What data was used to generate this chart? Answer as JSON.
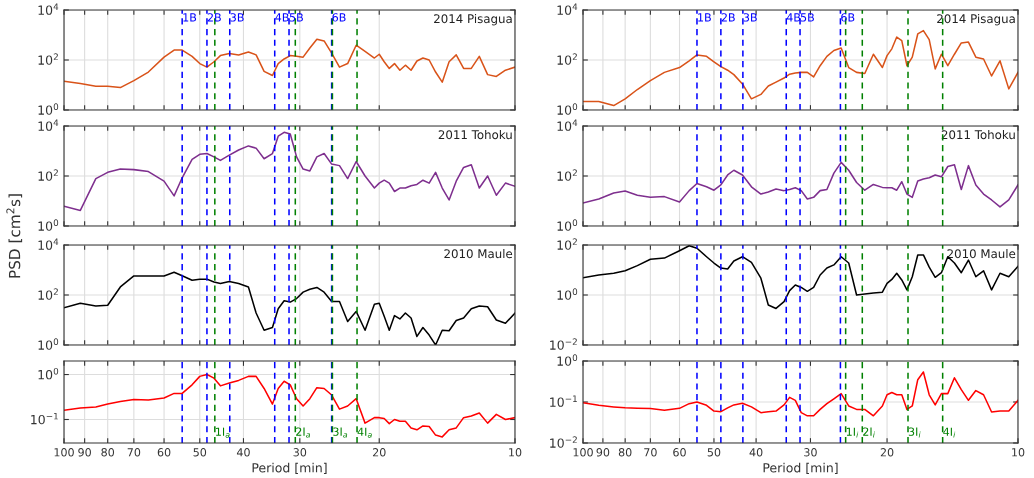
{
  "chart_data": [
    {
      "type": "line",
      "title": "2014 Pisagua",
      "x": [
        100,
        92,
        85,
        80,
        75,
        70,
        65,
        60,
        57,
        54.7,
        52,
        50,
        48.2,
        46.5,
        45,
        43,
        41,
        39,
        37.5,
        36,
        34.5,
        33.5,
        32.5,
        31.5,
        30.5,
        29.5,
        28.5,
        27.5,
        26.5,
        25.5,
        24.5,
        23.5,
        22.5,
        21.5,
        20.5,
        20,
        19.5,
        19,
        18.5,
        18,
        17.5,
        17,
        16.5,
        16,
        15.5,
        15,
        14.5,
        14,
        13.5,
        13,
        12.5,
        12,
        11.5,
        11,
        10.5,
        10
      ],
      "series": [
        {
          "color": "#d95319",
          "values": [
            14,
            11.5,
            8.9,
            8.9,
            7.9,
            15,
            33,
            130,
            250,
            250,
            140,
            72,
            52,
            85,
            150,
            180,
            160,
            210,
            160,
            35,
            24,
            72,
            110,
            150,
            140,
            130,
            300,
            680,
            580,
            190,
            52,
            72,
            390,
            220,
            120,
            170,
            85,
            46,
            72,
            39,
            62,
            39,
            91,
            120,
            100,
            33,
            13,
            85,
            160,
            46,
            46,
            140,
            26,
            22,
            39,
            52
          ]
        }
      ],
      "xlim": [
        100,
        10
      ],
      "xticks": [
        100,
        90,
        80,
        70,
        60,
        50,
        40,
        30,
        20,
        10
      ],
      "ylim": [
        1,
        10000
      ],
      "yticks": [
        {
          "value": 1,
          "label": "10$^{0}$"
        },
        {
          "value": 100,
          "label": "10$^{2}$"
        },
        {
          "value": 10000,
          "label": "10$^{4}$"
        }
      ],
      "log": "xy",
      "grid": true,
      "tick_labels": "y",
      "ref_lines": [
        {
          "axis": "x",
          "value": 54.7,
          "label": "1B",
          "color": "#0000ff",
          "line_style": "dashed"
        },
        {
          "axis": "x",
          "value": 48.2,
          "label": "2B",
          "color": "#0000ff",
          "line_style": "dashed"
        },
        {
          "axis": "x",
          "value": 42.9,
          "label": "3B",
          "color": "#0000ff",
          "line_style": "dashed"
        },
        {
          "axis": "x",
          "value": 34.1,
          "label": "4B",
          "color": "#0000ff",
          "line_style": "dashed"
        },
        {
          "axis": "x",
          "value": 31.7,
          "label": "5B",
          "color": "#0000ff",
          "line_style": "dashed"
        },
        {
          "axis": "x",
          "value": 25.5,
          "label": "6B",
          "color": "#0000ff",
          "line_style": "dashed"
        },
        {
          "axis": "x",
          "value": 46.3,
          "color": "#008000",
          "line_style": "dashed"
        },
        {
          "axis": "x",
          "value": 30.7,
          "color": "#008000",
          "line_style": "dashed"
        },
        {
          "axis": "x",
          "value": 25.4,
          "color": "#008000",
          "line_style": "dashed"
        },
        {
          "axis": "x",
          "value": 22.4,
          "color": "#008000",
          "line_style": "dashed"
        }
      ]
    },
    {
      "type": "line",
      "title": "2014 Pisagua",
      "x": [
        100,
        92,
        85,
        80,
        75,
        70,
        65,
        60,
        57,
        54.7,
        52,
        50,
        48.2,
        46.5,
        45,
        43,
        41,
        39,
        37.5,
        36,
        34.5,
        33.5,
        32.5,
        31.5,
        30.5,
        29.5,
        28.5,
        27.5,
        26.5,
        25.5,
        24.5,
        23.5,
        22.5,
        21.5,
        20.5,
        20,
        19.5,
        19,
        18.5,
        18,
        17.5,
        17,
        16.5,
        16,
        15.5,
        15,
        14.5,
        14,
        13.5,
        13,
        12.5,
        12,
        11.5,
        11,
        10.5,
        10
      ],
      "series": [
        {
          "color": "#d95319",
          "values": [
            2.2,
            2.2,
            1.5,
            2.8,
            6.6,
            15,
            32,
            50,
            93,
            160,
            140,
            85,
            54,
            39,
            26,
            11,
            2.8,
            4.2,
            9.1,
            13,
            19,
            27,
            30,
            32,
            32,
            21,
            59,
            140,
            240,
            300,
            50,
            32,
            29,
            170,
            50,
            150,
            280,
            830,
            600,
            59,
            130,
            1100,
            1500,
            650,
            44,
            170,
            59,
            170,
            480,
            520,
            130,
            110,
            23,
            93,
            7,
            32
          ]
        }
      ],
      "xlim": [
        100,
        10
      ],
      "xticks": [
        100,
        90,
        80,
        70,
        60,
        50,
        40,
        30,
        20,
        10
      ],
      "ylim": [
        1,
        10000
      ],
      "yticks": [
        {
          "value": 1,
          "label": "10$^{0}$"
        },
        {
          "value": 100,
          "label": "10$^{2}$"
        },
        {
          "value": 10000,
          "label": "10$^{4}$"
        }
      ],
      "log": "xy",
      "grid": true,
      "tick_labels": "y",
      "ref_lines": [
        {
          "axis": "x",
          "value": 54.7,
          "label": "1B",
          "color": "#0000ff",
          "line_style": "dashed"
        },
        {
          "axis": "x",
          "value": 48.2,
          "label": "2B",
          "color": "#0000ff",
          "line_style": "dashed"
        },
        {
          "axis": "x",
          "value": 42.9,
          "label": "3B",
          "color": "#0000ff",
          "line_style": "dashed"
        },
        {
          "axis": "x",
          "value": 34.1,
          "label": "4B",
          "color": "#0000ff",
          "line_style": "dashed"
        },
        {
          "axis": "x",
          "value": 31.7,
          "label": "5B",
          "color": "#0000ff",
          "line_style": "dashed"
        },
        {
          "axis": "x",
          "value": 25.6,
          "label": "6B",
          "color": "#0000ff",
          "line_style": "dashed"
        },
        {
          "axis": "x",
          "value": 24.9,
          "color": "#008000",
          "line_style": "dashed"
        },
        {
          "axis": "x",
          "value": 22.8,
          "color": "#008000",
          "line_style": "dashed"
        },
        {
          "axis": "x",
          "value": 17.9,
          "color": "#008000",
          "line_style": "dashed"
        },
        {
          "axis": "x",
          "value": 14.9,
          "color": "#008000",
          "line_style": "dashed"
        }
      ]
    },
    {
      "type": "line",
      "title": "2011 Tohoku",
      "ylabel": "PSD [cm$^{2}$s]",
      "x": [
        100,
        92,
        85,
        80,
        75,
        70,
        65,
        60,
        57,
        54.7,
        52,
        50,
        48.2,
        46.5,
        45,
        43,
        41,
        39,
        37.5,
        36,
        34.5,
        33.5,
        32.5,
        31.5,
        30.5,
        29.5,
        28.5,
        27.5,
        26.5,
        25.5,
        24.5,
        23.5,
        22.5,
        21.5,
        20.5,
        20,
        19.5,
        19,
        18.5,
        18,
        17.5,
        17,
        16.5,
        16,
        15.5,
        15,
        14.5,
        14,
        13.5,
        13,
        12.5,
        12,
        11.5,
        11,
        10.5,
        10
      ],
      "series": [
        {
          "color": "#7e2f8e",
          "values": [
            6.2,
            4.2,
            79,
            140,
            190,
            180,
            150,
            62,
            16,
            85,
            460,
            740,
            790,
            580,
            420,
            680,
            1100,
            1600,
            1300,
            490,
            790,
            3900,
            5600,
            4800,
            580,
            190,
            160,
            580,
            790,
            300,
            260,
            79,
            380,
            100,
            33,
            52,
            68,
            52,
            24,
            33,
            33,
            41,
            46,
            68,
            52,
            140,
            33,
            11,
            62,
            220,
            280,
            33,
            100,
            17,
            52,
            39
          ]
        }
      ],
      "xlim": [
        100,
        10
      ],
      "xticks": [
        100,
        90,
        80,
        70,
        60,
        50,
        40,
        30,
        20,
        10
      ],
      "ylim": [
        1,
        10000
      ],
      "yticks": [
        {
          "value": 1,
          "label": "10$^{0}$"
        },
        {
          "value": 100,
          "label": "10$^{2}$"
        },
        {
          "value": 10000,
          "label": "10$^{4}$"
        }
      ],
      "log": "xy",
      "grid": true,
      "tick_labels": "y",
      "ref_lines": [
        {
          "axis": "x",
          "value": 54.7,
          "color": "#0000ff",
          "line_style": "dashed"
        },
        {
          "axis": "x",
          "value": 48.2,
          "color": "#0000ff",
          "line_style": "dashed"
        },
        {
          "axis": "x",
          "value": 42.9,
          "color": "#0000ff",
          "line_style": "dashed"
        },
        {
          "axis": "x",
          "value": 34.1,
          "color": "#0000ff",
          "line_style": "dashed"
        },
        {
          "axis": "x",
          "value": 31.7,
          "color": "#0000ff",
          "line_style": "dashed"
        },
        {
          "axis": "x",
          "value": 25.5,
          "color": "#0000ff",
          "line_style": "dashed"
        },
        {
          "axis": "x",
          "value": 46.3,
          "color": "#008000",
          "line_style": "dashed"
        },
        {
          "axis": "x",
          "value": 30.7,
          "color": "#008000",
          "line_style": "dashed"
        },
        {
          "axis": "x",
          "value": 25.4,
          "color": "#008000",
          "line_style": "dashed"
        },
        {
          "axis": "x",
          "value": 22.4,
          "color": "#008000",
          "line_style": "dashed"
        }
      ]
    },
    {
      "type": "line",
      "title": "2011 Tohoku",
      "x": [
        100,
        92,
        85,
        80,
        75,
        70,
        65,
        60,
        57,
        54.7,
        52,
        50,
        48.2,
        46.5,
        45,
        43,
        41,
        39,
        37.5,
        36,
        34.5,
        33.5,
        32.5,
        31.5,
        30.5,
        29.5,
        28.5,
        27.5,
        26.5,
        25.5,
        24.5,
        23.5,
        22.5,
        21.5,
        20.5,
        20,
        19.5,
        19,
        18.5,
        18,
        17.5,
        17,
        16.5,
        16,
        15.5,
        15,
        14.5,
        14,
        13.5,
        13,
        12.5,
        12,
        11.5,
        11,
        10.5,
        10
      ],
      "series": [
        {
          "color": "#7e2f8e",
          "values": [
            8.3,
            12,
            21,
            25,
            17,
            14,
            15,
            9.1,
            26,
            50,
            37,
            27,
            44,
            110,
            170,
            110,
            37,
            19,
            23,
            30,
            26,
            29,
            34,
            26,
            12,
            14,
            26,
            29,
            130,
            350,
            170,
            55,
            27,
            46,
            35,
            34,
            34,
            27,
            59,
            19,
            14,
            63,
            76,
            85,
            110,
            93,
            240,
            280,
            29,
            260,
            44,
            19,
            11,
            5.8,
            11,
            44
          ]
        }
      ],
      "xlim": [
        100,
        10
      ],
      "xticks": [
        100,
        90,
        80,
        70,
        60,
        50,
        40,
        30,
        20,
        10
      ],
      "ylim": [
        1,
        10000
      ],
      "yticks": [
        {
          "value": 1,
          "label": "10$^{0}$"
        },
        {
          "value": 100,
          "label": "10$^{2}$"
        },
        {
          "value": 10000,
          "label": "10$^{4}$"
        }
      ],
      "log": "xy",
      "grid": true,
      "tick_labels": "y",
      "ref_lines": [
        {
          "axis": "x",
          "value": 54.7,
          "color": "#0000ff",
          "line_style": "dashed"
        },
        {
          "axis": "x",
          "value": 48.2,
          "color": "#0000ff",
          "line_style": "dashed"
        },
        {
          "axis": "x",
          "value": 42.9,
          "color": "#0000ff",
          "line_style": "dashed"
        },
        {
          "axis": "x",
          "value": 34.1,
          "color": "#0000ff",
          "line_style": "dashed"
        },
        {
          "axis": "x",
          "value": 31.7,
          "color": "#0000ff",
          "line_style": "dashed"
        },
        {
          "axis": "x",
          "value": 25.6,
          "color": "#0000ff",
          "line_style": "dashed"
        },
        {
          "axis": "x",
          "value": 24.9,
          "color": "#008000",
          "line_style": "dashed"
        },
        {
          "axis": "x",
          "value": 22.8,
          "color": "#008000",
          "line_style": "dashed"
        },
        {
          "axis": "x",
          "value": 17.9,
          "color": "#008000",
          "line_style": "dashed"
        },
        {
          "axis": "x",
          "value": 14.9,
          "color": "#008000",
          "line_style": "dashed"
        }
      ]
    },
    {
      "type": "line",
      "title": "2010 Maule",
      "x": [
        100,
        92,
        85,
        80,
        75,
        70,
        65,
        60,
        57,
        54.7,
        52,
        50,
        48.2,
        46.5,
        45,
        43,
        41,
        39,
        37.5,
        36,
        34.5,
        33.5,
        32.5,
        31.5,
        30.5,
        29.5,
        28.5,
        27.5,
        26.5,
        25.5,
        24.5,
        23.5,
        22.5,
        21.5,
        20.5,
        20,
        19.5,
        19,
        18.5,
        18,
        17.5,
        17,
        16.5,
        16,
        15.5,
        15,
        14.5,
        14,
        13.5,
        13,
        12.5,
        12,
        11.5,
        11,
        10.5,
        10
      ],
      "series": [
        {
          "color": "#000000",
          "values": [
            31,
            47,
            36,
            39,
            210,
            580,
            580,
            580,
            810,
            590,
            390,
            430,
            430,
            330,
            290,
            350,
            290,
            210,
            19,
            3.9,
            5,
            28,
            59,
            52,
            72,
            130,
            170,
            200,
            130,
            55,
            55,
            8.7,
            22,
            3.9,
            43,
            47,
            14,
            3.9,
            15,
            11,
            19,
            12,
            2.2,
            5,
            2.5,
            1.0,
            3.9,
            3.7,
            9.5,
            12,
            28,
            36,
            34,
            10,
            7.4,
            19
          ]
        }
      ],
      "xlim": [
        100,
        10
      ],
      "xticks": [
        100,
        90,
        80,
        70,
        60,
        50,
        40,
        30,
        20,
        10
      ],
      "ylim": [
        1,
        10000
      ],
      "yticks": [
        {
          "value": 1,
          "label": "10$^{0}$"
        },
        {
          "value": 100,
          "label": "10$^{2}$"
        },
        {
          "value": 10000,
          "label": "10$^{4}$"
        }
      ],
      "log": "xy",
      "grid": true,
      "tick_labels": "y",
      "ref_lines": [
        {
          "axis": "x",
          "value": 54.7,
          "color": "#0000ff",
          "line_style": "dashed"
        },
        {
          "axis": "x",
          "value": 48.2,
          "color": "#0000ff",
          "line_style": "dashed"
        },
        {
          "axis": "x",
          "value": 42.9,
          "color": "#0000ff",
          "line_style": "dashed"
        },
        {
          "axis": "x",
          "value": 34.1,
          "color": "#0000ff",
          "line_style": "dashed"
        },
        {
          "axis": "x",
          "value": 31.7,
          "color": "#0000ff",
          "line_style": "dashed"
        },
        {
          "axis": "x",
          "value": 25.5,
          "color": "#0000ff",
          "line_style": "dashed"
        },
        {
          "axis": "x",
          "value": 46.3,
          "color": "#008000",
          "line_style": "dashed"
        },
        {
          "axis": "x",
          "value": 30.7,
          "color": "#008000",
          "line_style": "dashed"
        },
        {
          "axis": "x",
          "value": 25.4,
          "color": "#008000",
          "line_style": "dashed"
        },
        {
          "axis": "x",
          "value": 22.4,
          "color": "#008000",
          "line_style": "dashed"
        }
      ]
    },
    {
      "type": "line",
      "title": "2010 Maule",
      "x": [
        100,
        92,
        85,
        80,
        75,
        70,
        65,
        60,
        57,
        54.7,
        52,
        50,
        48.2,
        46.5,
        45,
        43,
        41,
        39,
        37.5,
        36,
        34.5,
        33.5,
        32.5,
        31.5,
        30.5,
        29.5,
        28.5,
        27.5,
        26.5,
        25.5,
        24.5,
        23.5,
        22.5,
        21.5,
        20.5,
        20,
        19.5,
        19,
        18.5,
        18,
        17.5,
        17,
        16.5,
        16,
        15.5,
        15,
        14.5,
        14,
        13.5,
        13,
        12.5,
        12,
        11.5,
        11,
        10.5,
        10
      ],
      "series": [
        {
          "color": "#000000",
          "values": [
            4.9,
            6.3,
            7.4,
            9.3,
            15,
            27,
            30,
            59,
            93,
            74,
            34,
            19,
            12,
            11,
            23,
            34,
            20,
            4.7,
            0.4,
            0.29,
            0.54,
            1.5,
            2.5,
            2.0,
            1.4,
            2.0,
            6.3,
            12,
            16,
            34,
            19,
            1.0,
            1.1,
            1.2,
            1.3,
            2.9,
            4.2,
            7.4,
            4.0,
            1.6,
            5.4,
            40,
            40,
            13,
            5.1,
            7.8,
            34,
            19,
            7.8,
            25,
            5.4,
            9.3,
            1.6,
            7.4,
            5.4,
            14
          ]
        }
      ],
      "xlim": [
        100,
        10
      ],
      "xticks": [
        100,
        90,
        80,
        70,
        60,
        50,
        40,
        30,
        20,
        10
      ],
      "ylim": [
        0.01,
        100
      ],
      "yticks": [
        {
          "value": 0.01,
          "label": "10$^{−2}$"
        },
        {
          "value": 1,
          "label": "10$^{0}$"
        },
        {
          "value": 100,
          "label": "10$^{2}$"
        }
      ],
      "log": "xy",
      "grid": true,
      "tick_labels": "y",
      "ref_lines": [
        {
          "axis": "x",
          "value": 54.7,
          "color": "#0000ff",
          "line_style": "dashed"
        },
        {
          "axis": "x",
          "value": 48.2,
          "color": "#0000ff",
          "line_style": "dashed"
        },
        {
          "axis": "x",
          "value": 42.9,
          "color": "#0000ff",
          "line_style": "dashed"
        },
        {
          "axis": "x",
          "value": 34.1,
          "color": "#0000ff",
          "line_style": "dashed"
        },
        {
          "axis": "x",
          "value": 31.7,
          "color": "#0000ff",
          "line_style": "dashed"
        },
        {
          "axis": "x",
          "value": 25.6,
          "color": "#0000ff",
          "line_style": "dashed"
        },
        {
          "axis": "x",
          "value": 24.9,
          "color": "#008000",
          "line_style": "dashed"
        },
        {
          "axis": "x",
          "value": 22.8,
          "color": "#008000",
          "line_style": "dashed"
        },
        {
          "axis": "x",
          "value": 17.9,
          "color": "#008000",
          "line_style": "dashed"
        },
        {
          "axis": "x",
          "value": 14.9,
          "color": "#008000",
          "line_style": "dashed"
        }
      ]
    },
    {
      "type": "line",
      "xlabel": "Period [min]",
      "x": [
        100,
        92,
        85,
        80,
        75,
        70,
        65,
        60,
        57,
        54.7,
        52,
        50,
        48.2,
        46.5,
        45,
        43,
        41,
        39,
        37.5,
        36,
        34.5,
        33.5,
        32.5,
        31.5,
        30.5,
        29.5,
        28.5,
        27.5,
        26.5,
        25.5,
        24.5,
        23.5,
        22.5,
        21.5,
        20.5,
        20,
        19.5,
        19,
        18.5,
        18,
        17.5,
        17,
        16.5,
        16,
        15.5,
        15,
        14.5,
        14,
        13.5,
        13,
        12.5,
        12,
        11.5,
        11,
        10.5,
        10
      ],
      "series": [
        {
          "color": "#ff0000",
          "values": [
            0.16,
            0.18,
            0.19,
            0.22,
            0.25,
            0.28,
            0.27,
            0.3,
            0.38,
            0.38,
            0.59,
            0.91,
            1.0,
            0.83,
            0.56,
            0.65,
            0.74,
            0.91,
            0.91,
            0.49,
            0.22,
            0.49,
            0.71,
            0.59,
            0.29,
            0.2,
            0.29,
            0.51,
            0.49,
            0.35,
            0.17,
            0.2,
            0.29,
            0.083,
            0.11,
            0.11,
            0.105,
            0.081,
            0.1,
            0.091,
            0.091,
            0.065,
            0.059,
            0.072,
            0.07,
            0.045,
            0.041,
            0.059,
            0.065,
            0.11,
            0.12,
            0.14,
            0.083,
            0.13,
            0.1,
            0.11
          ]
        }
      ],
      "xlim": [
        100,
        10
      ],
      "xticks": [
        100,
        90,
        80,
        70,
        60,
        50,
        40,
        30,
        20,
        10
      ],
      "ylim": [
        0.03,
        2
      ],
      "yticks": [
        {
          "value": 0.1,
          "label": "10$^{−1}$"
        },
        {
          "value": 1,
          "label": "10$^{0}$"
        }
      ],
      "log": "xy",
      "grid": true,
      "ref_lines": [
        {
          "axis": "x",
          "value": 54.7,
          "color": "#0000ff",
          "line_style": "dashed"
        },
        {
          "axis": "x",
          "value": 48.2,
          "color": "#0000ff",
          "line_style": "dashed"
        },
        {
          "axis": "x",
          "value": 42.9,
          "color": "#0000ff",
          "line_style": "dashed"
        },
        {
          "axis": "x",
          "value": 34.1,
          "color": "#0000ff",
          "line_style": "dashed"
        },
        {
          "axis": "x",
          "value": 31.7,
          "color": "#0000ff",
          "line_style": "dashed"
        },
        {
          "axis": "x",
          "value": 25.5,
          "color": "#0000ff",
          "line_style": "dashed"
        },
        {
          "axis": "x",
          "value": 46.3,
          "label": "1I$_{a}$",
          "color": "#008000",
          "line_style": "dashed"
        },
        {
          "axis": "x",
          "value": 30.7,
          "label": "2I$_{a}$",
          "color": "#008000",
          "line_style": "dashed"
        },
        {
          "axis": "x",
          "value": 25.4,
          "label": "3I$_{a}$",
          "color": "#008000",
          "line_style": "dashed"
        },
        {
          "axis": "x",
          "value": 22.4,
          "label": "4I$_{a}$",
          "color": "#008000",
          "line_style": "dashed"
        }
      ]
    },
    {
      "type": "line",
      "xlabel": "Period [min]",
      "x": [
        100,
        92,
        85,
        80,
        75,
        70,
        65,
        60,
        57,
        54.7,
        52,
        50,
        48.2,
        46.5,
        45,
        43,
        41,
        39,
        37.5,
        36,
        34.5,
        33.5,
        32.5,
        31.5,
        30.5,
        29.5,
        28.5,
        27.5,
        26.5,
        25.5,
        24.5,
        23.5,
        22.5,
        21.5,
        20.5,
        20,
        19.5,
        19,
        18.5,
        18,
        17.5,
        17,
        16.5,
        16,
        15.5,
        15,
        14.5,
        14,
        13.5,
        13,
        12.5,
        12,
        11.5,
        11,
        10.5,
        10
      ],
      "series": [
        {
          "color": "#ff0000",
          "values": [
            0.096,
            0.083,
            0.076,
            0.072,
            0.07,
            0.069,
            0.063,
            0.07,
            0.091,
            0.1,
            0.083,
            0.06,
            0.058,
            0.072,
            0.085,
            0.093,
            0.076,
            0.055,
            0.058,
            0.06,
            0.085,
            0.13,
            0.11,
            0.055,
            0.046,
            0.046,
            0.066,
            0.091,
            0.12,
            0.16,
            0.08,
            0.066,
            0.066,
            0.046,
            0.08,
            0.15,
            0.17,
            0.15,
            0.15,
            0.066,
            0.08,
            0.35,
            0.54,
            0.15,
            0.085,
            0.16,
            0.16,
            0.39,
            0.2,
            0.11,
            0.19,
            0.15,
            0.057,
            0.06,
            0.06,
            0.11
          ]
        }
      ],
      "xlim": [
        100,
        10
      ],
      "xticks": [
        100,
        90,
        80,
        70,
        60,
        50,
        40,
        30,
        20,
        10
      ],
      "ylim": [
        0.01,
        1
      ],
      "yticks": [
        {
          "value": 0.01,
          "label": "10$^{−2}$"
        },
        {
          "value": 0.1,
          "label": "10$^{−1}$"
        },
        {
          "value": 1,
          "label": "10$^{0}$"
        }
      ],
      "log": "xy",
      "grid": true,
      "ref_lines": [
        {
          "axis": "x",
          "value": 54.7,
          "color": "#0000ff",
          "line_style": "dashed"
        },
        {
          "axis": "x",
          "value": 48.2,
          "color": "#0000ff",
          "line_style": "dashed"
        },
        {
          "axis": "x",
          "value": 42.9,
          "color": "#0000ff",
          "line_style": "dashed"
        },
        {
          "axis": "x",
          "value": 34.1,
          "color": "#0000ff",
          "line_style": "dashed"
        },
        {
          "axis": "x",
          "value": 31.7,
          "color": "#0000ff",
          "line_style": "dashed"
        },
        {
          "axis": "x",
          "value": 25.6,
          "color": "#0000ff",
          "line_style": "dashed"
        },
        {
          "axis": "x",
          "value": 24.9,
          "label": "1I$_{i}$",
          "color": "#008000",
          "line_style": "dashed"
        },
        {
          "axis": "x",
          "value": 22.8,
          "label": "2I$_{i}$",
          "color": "#008000",
          "line_style": "dashed"
        },
        {
          "axis": "x",
          "value": 17.9,
          "label": "3I$_{i}$",
          "color": "#008000",
          "line_style": "dashed"
        },
        {
          "axis": "x",
          "value": 14.9,
          "label": "4I$_{i}$",
          "color": "#008000",
          "line_style": "dashed"
        }
      ]
    }
  ]
}
